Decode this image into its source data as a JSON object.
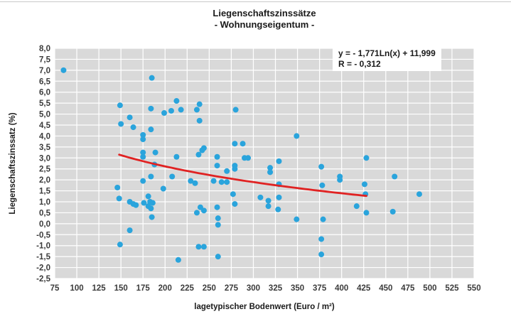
{
  "chart": {
    "title_line1": "Liegenschaftszinssätze",
    "title_line2": "- Wohnungseigentum -",
    "equation_line1": "y = - 1,771Ln(x) + 11,999",
    "equation_line2": "R = - 0,312",
    "xlabel": "lagetypischer Bodenwert (Euro / m²)",
    "ylabel": "Liegenschaftszinssatz (%)"
  },
  "chart_data": {
    "type": "scatter",
    "title": "Liegenschaftszinssätze - Wohnungseigentum -",
    "xlabel": "lagetypischer Bodenwert (Euro / m²)",
    "ylabel": "Liegenschaftszinssatz (%)",
    "xlim": [
      75,
      550
    ],
    "ylim": [
      -2.5,
      8.0
    ],
    "xticks": [
      75,
      100,
      125,
      150,
      175,
      200,
      225,
      250,
      275,
      300,
      325,
      350,
      375,
      400,
      425,
      450,
      475,
      500,
      525,
      550
    ],
    "yticks": [
      8.0,
      7.5,
      7.0,
      6.5,
      6.0,
      5.5,
      5.0,
      4.5,
      4.0,
      3.5,
      3.0,
      2.5,
      2.0,
      1.5,
      1.0,
      0.5,
      0.0,
      -0.5,
      -1.0,
      -1.5,
      -2.0,
      -2.5
    ],
    "ytick_labels": [
      "8,0",
      "7,5",
      "7,0",
      "6,5",
      "6,0",
      "5,5",
      "5,0",
      "4,5",
      "4,0",
      "3,5",
      "3,0",
      "2,5",
      "2,0",
      "1,5",
      "1,0",
      "0,5",
      "0,0",
      "-0,5",
      "-1,0",
      "-1,5",
      "-2,0",
      "-2,5"
    ],
    "grid": true,
    "legend": "none",
    "colors": {
      "point": "#2AA4DC",
      "trend": "#E02222",
      "plot_bg": "#D9D9D9",
      "grid": "#FFFFFF"
    },
    "trendline": {
      "model": "y = a*Ln(x) + b",
      "a": -1.771,
      "b": 11.999,
      "r": -0.312,
      "x_range": [
        148,
        428
      ],
      "equation_text": "y = - 1,771Ln(x) + 11,999",
      "r_text": "R = - 0,312"
    },
    "points": [
      [
        85,
        7.0
      ],
      [
        185,
        6.65
      ],
      [
        149,
        5.4
      ],
      [
        213,
        5.6
      ],
      [
        184,
        5.25
      ],
      [
        218,
        5.2
      ],
      [
        207,
        5.15
      ],
      [
        199,
        5.05
      ],
      [
        236,
        5.2
      ],
      [
        239,
        5.45
      ],
      [
        160,
        4.85
      ],
      [
        150,
        4.55
      ],
      [
        164,
        4.4
      ],
      [
        184,
        4.3
      ],
      [
        175,
        4.05
      ],
      [
        175,
        3.85
      ],
      [
        175,
        3.25
      ],
      [
        175,
        3.05
      ],
      [
        189,
        3.25
      ],
      [
        238,
        3.15
      ],
      [
        188,
        2.7
      ],
      [
        213,
        3.05
      ],
      [
        280,
        5.2
      ],
      [
        239,
        4.7
      ],
      [
        349,
        4.0
      ],
      [
        244,
        3.45
      ],
      [
        242,
        3.35
      ],
      [
        279,
        3.65
      ],
      [
        288,
        3.65
      ],
      [
        259,
        3.05
      ],
      [
        290,
        3.0
      ],
      [
        294,
        3.0
      ],
      [
        329,
        2.85
      ],
      [
        428,
        3.0
      ],
      [
        175,
        1.95
      ],
      [
        184,
        2.15
      ],
      [
        146,
        1.65
      ],
      [
        208,
        2.15
      ],
      [
        229,
        1.95
      ],
      [
        234,
        1.85
      ],
      [
        198,
        1.6
      ],
      [
        148,
        1.15
      ],
      [
        160,
        1.0
      ],
      [
        164,
        0.9
      ],
      [
        167,
        0.85
      ],
      [
        181,
        1.25
      ],
      [
        176,
        0.95
      ],
      [
        183,
        1.0
      ],
      [
        186,
        0.95
      ],
      [
        181,
        0.8
      ],
      [
        184,
        0.7
      ],
      [
        185,
        0.3
      ],
      [
        160,
        -0.3
      ],
      [
        149,
        -0.95
      ],
      [
        238,
        -1.05
      ],
      [
        244,
        -1.05
      ],
      [
        215,
        -1.65
      ],
      [
        259,
        2.65
      ],
      [
        270,
        2.4
      ],
      [
        279,
        2.65
      ],
      [
        279,
        2.5
      ],
      [
        319,
        2.55
      ],
      [
        319,
        2.35
      ],
      [
        377,
        2.6
      ],
      [
        255,
        1.95
      ],
      [
        264,
        1.9
      ],
      [
        270,
        1.9
      ],
      [
        329,
        1.8
      ],
      [
        378,
        1.75
      ],
      [
        398,
        2.15
      ],
      [
        398,
        2.0
      ],
      [
        277,
        1.35
      ],
      [
        279,
        0.9
      ],
      [
        308,
        1.2
      ],
      [
        317,
        1.05
      ],
      [
        317,
        0.8
      ],
      [
        329,
        1.2
      ],
      [
        328,
        0.65
      ],
      [
        259,
        0.75
      ],
      [
        260,
        0.25
      ],
      [
        260,
        -0.05
      ],
      [
        349,
        0.2
      ],
      [
        379,
        0.2
      ],
      [
        377,
        -0.7
      ],
      [
        260,
        -1.5
      ],
      [
        377,
        -1.4
      ],
      [
        240,
        0.75
      ],
      [
        244,
        0.6
      ],
      [
        236,
        0.5
      ],
      [
        426,
        1.8
      ],
      [
        427,
        1.35
      ],
      [
        460,
        2.15
      ],
      [
        488,
        1.35
      ],
      [
        417,
        0.8
      ],
      [
        428,
        0.5
      ],
      [
        458,
        0.55
      ]
    ]
  }
}
